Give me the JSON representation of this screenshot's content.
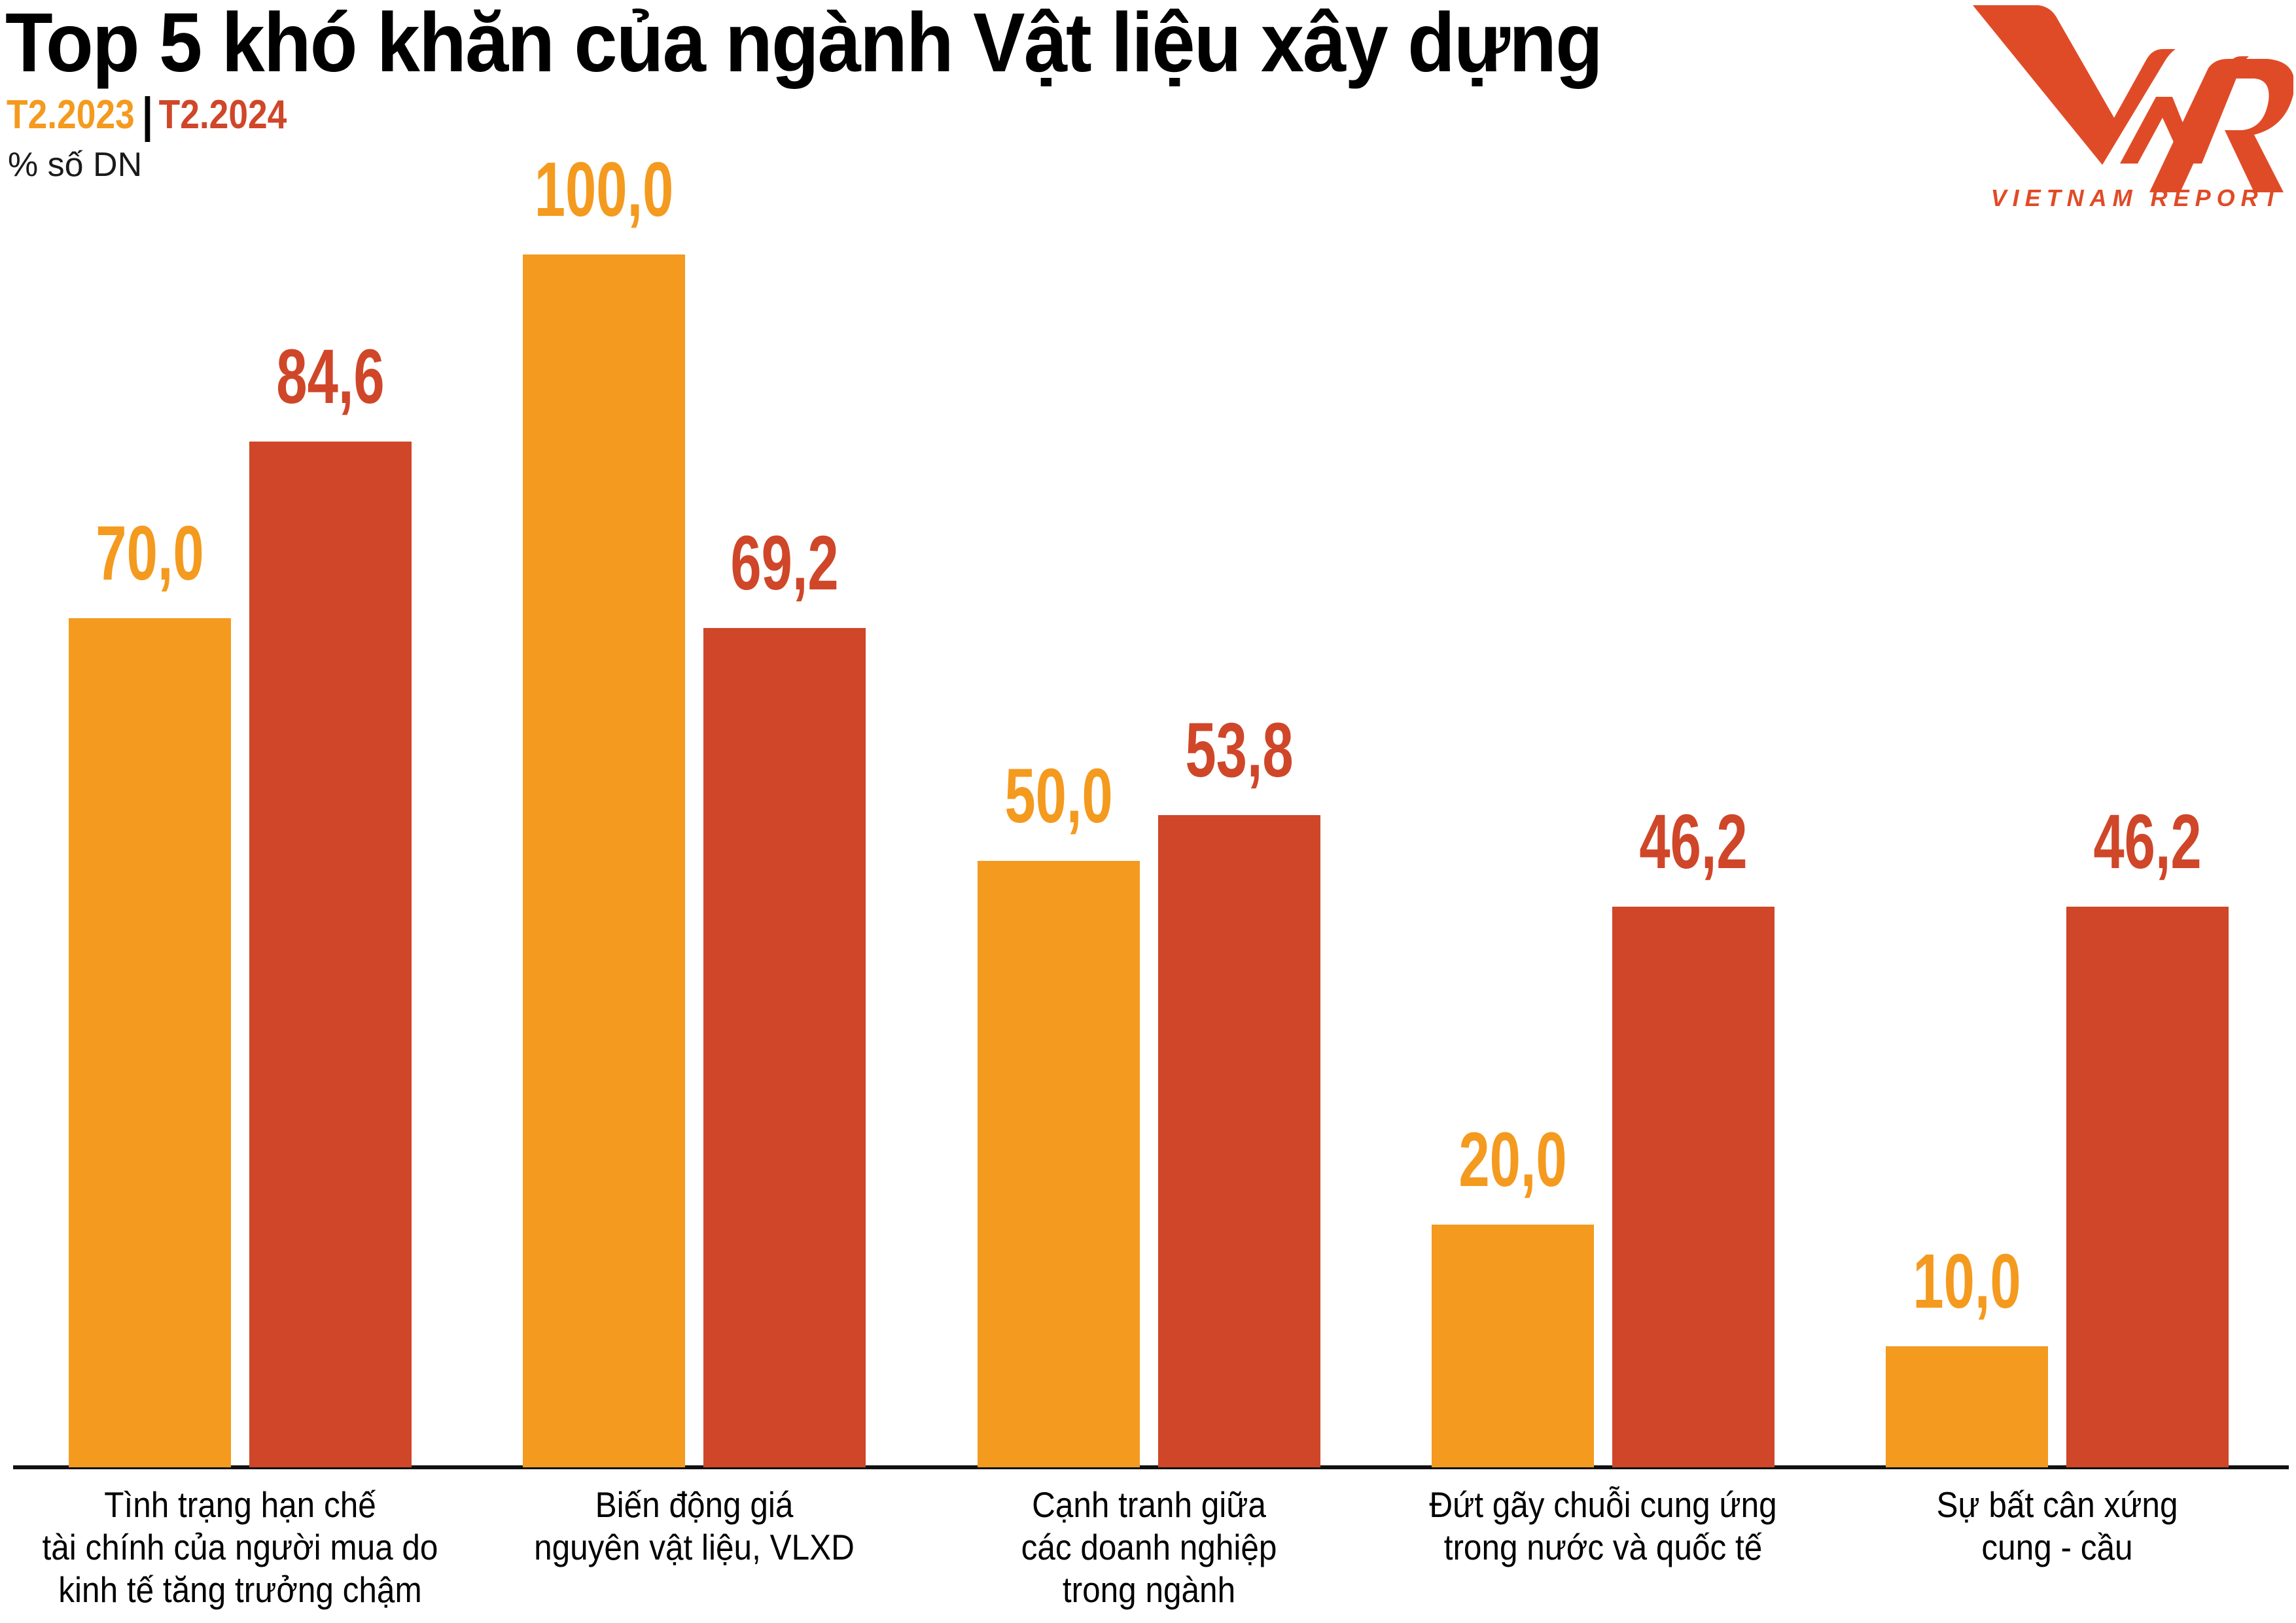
{
  "title": "Top 5 khó khăn của ngành Vật liệu xây dựng",
  "legend": {
    "series_2023": "T2.2023",
    "series_2024": "T2.2024"
  },
  "unit": "% số DN",
  "logo": {
    "mark": "VNR",
    "text": "VIETNAM REPORT",
    "color": "#E04B27"
  },
  "colors": {
    "t2_2023": "#F49A1F",
    "t2_2024": "#CF4629",
    "axis": "#111111"
  },
  "chart_data": {
    "type": "bar",
    "title": "Top 5 khó khăn của ngành Vật liệu xây dựng",
    "xlabel": "",
    "ylabel": "% số DN",
    "ylim": [
      0,
      100
    ],
    "grid": false,
    "legend_position": "top-left",
    "categories": [
      [
        "Tình trạng hạn chế",
        "tài chính của người mua do",
        "kinh tế tăng trưởng chậm"
      ],
      [
        "Biến động giá",
        "nguyên vật liệu, VLXD"
      ],
      [
        "Cạnh tranh giữa",
        "các doanh nghiệp",
        "trong ngành"
      ],
      [
        "Đứt gãy chuỗi cung ứng",
        "trong nước và quốc tế"
      ],
      [
        "Sự bất cân xứng",
        "cung - cầu"
      ]
    ],
    "series": [
      {
        "name": "T2.2023",
        "color": "#F49A1F",
        "values": [
          70.0,
          100.0,
          50.0,
          20.0,
          10.0
        ],
        "labels": [
          "70,0",
          "100,0",
          "50,0",
          "20,0",
          "10,0"
        ]
      },
      {
        "name": "T2.2024",
        "color": "#CF4629",
        "values": [
          84.6,
          69.2,
          53.8,
          46.2,
          46.2
        ],
        "labels": [
          "84,6",
          "69,2",
          "53,8",
          "46,2",
          "46,2"
        ]
      }
    ]
  }
}
